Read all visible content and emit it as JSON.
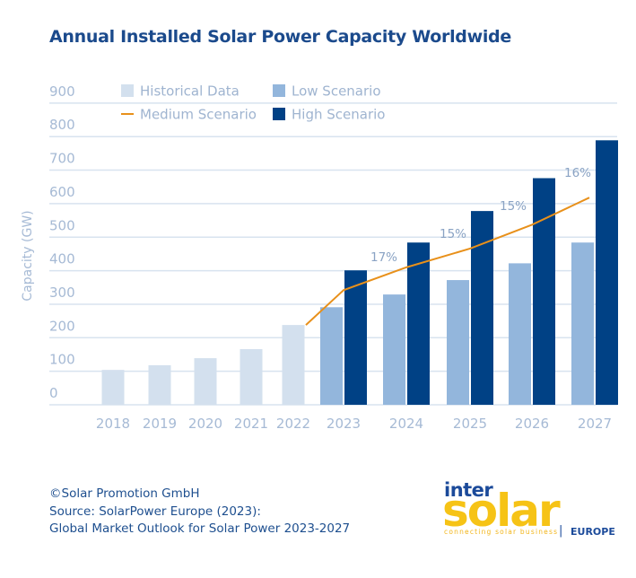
{
  "chart_data": {
    "type": "bar",
    "title": "Annual Installed Solar Power Capacity Worldwide",
    "ylabel": "Capacity (GW)",
    "xlabel": "",
    "ylim": [
      0,
      900
    ],
    "yticks": [
      0,
      100,
      200,
      300,
      400,
      500,
      600,
      700,
      800,
      900
    ],
    "grid": true,
    "legend_placement": "top-left",
    "categories": [
      "2018",
      "2019",
      "2020",
      "2021",
      "2022",
      "2023",
      "2024",
      "2025",
      "2026",
      "2027"
    ],
    "series": [
      {
        "name": "Historical Data",
        "type": "bar",
        "color": "#d3e0ee",
        "values": [
          104,
          118,
          139,
          166,
          238,
          null,
          null,
          null,
          null,
          null
        ]
      },
      {
        "name": "Low Scenario",
        "type": "bar",
        "color": "#93b6dc",
        "values": [
          null,
          null,
          null,
          null,
          null,
          291,
          329,
          372,
          422,
          484
        ]
      },
      {
        "name": "Medium Scenario",
        "type": "line",
        "color": "#e8901a",
        "values": [
          null,
          null,
          null,
          null,
          238,
          342,
          410,
          466,
          537,
          618
        ]
      },
      {
        "name": "High Scenario",
        "type": "bar",
        "color": "#004185",
        "values": [
          null,
          null,
          null,
          null,
          null,
          401,
          484,
          578,
          676,
          789
        ]
      }
    ],
    "annotations": [
      {
        "text": "17%",
        "category": "2024"
      },
      {
        "text": "15%",
        "category": "2025"
      },
      {
        "text": "15%",
        "category": "2026"
      },
      {
        "text": "16%",
        "category": "2027"
      }
    ]
  },
  "footer": {
    "line1": "©Solar Promotion GmbH",
    "line2": "Source: SolarPower Europe (2023):",
    "line3": "Global Market Outlook for Solar Power 2023-2027"
  },
  "logo": {
    "inter": "inter",
    "solar": "solar",
    "tagline": "connecting solar business",
    "region": "EUROPE"
  }
}
